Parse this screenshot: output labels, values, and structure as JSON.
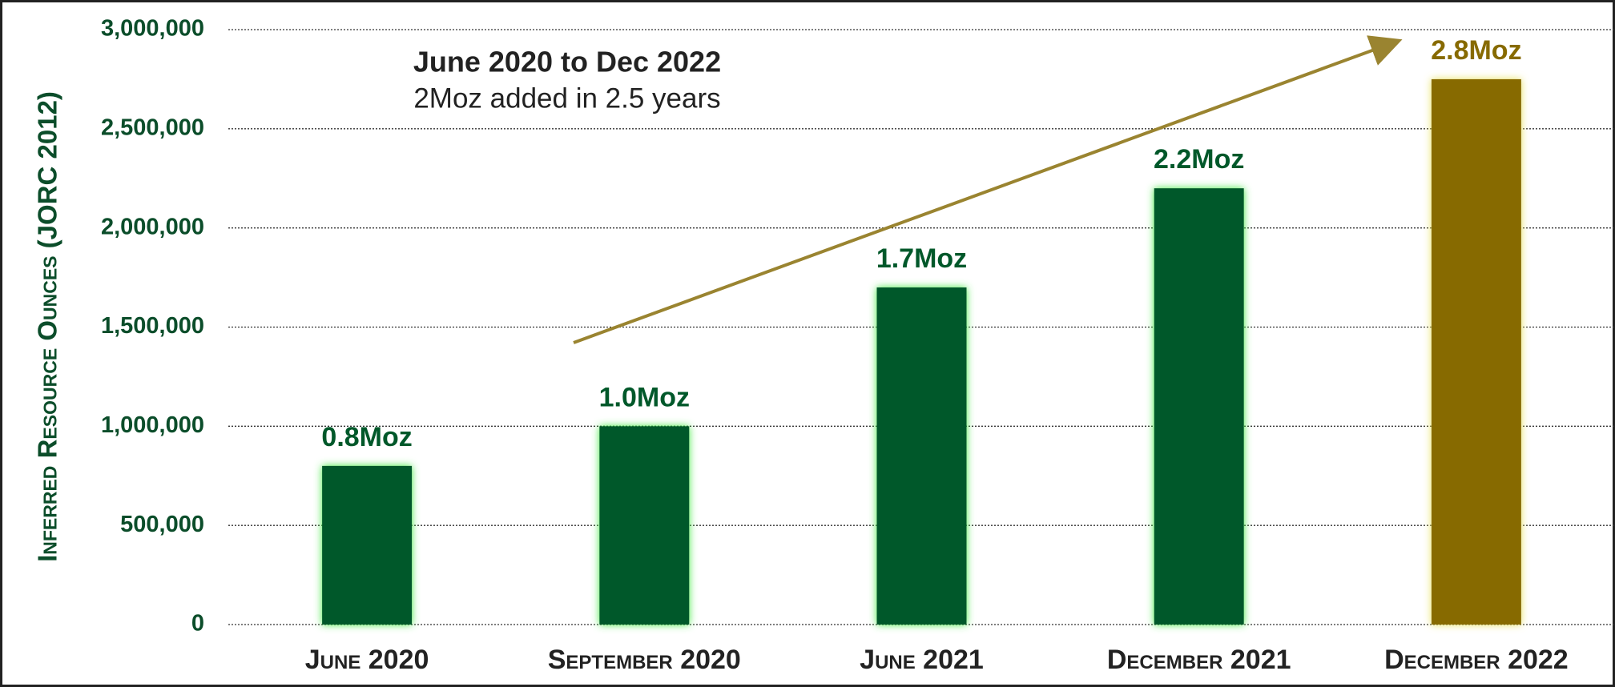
{
  "chart_data": {
    "type": "bar",
    "annotation_title": "June 2020 to Dec 2022",
    "annotation_subtitle": "2Moz added in 2.5 years",
    "y_label": "Inferred Resource Ounces (JORC 2012)",
    "categories": [
      "June 2020",
      "September 2020",
      "June 2021",
      "December 2021",
      "December 2022"
    ],
    "values": [
      800000,
      1000000,
      1700000,
      2200000,
      2750000
    ],
    "value_labels": [
      "0.8Moz",
      "1.0Moz",
      "1.7Moz",
      "2.2Moz",
      "2.8Moz"
    ],
    "colors": [
      "#00582a",
      "#00582a",
      "#00582a",
      "#00582a",
      "#876a00"
    ],
    "ylim": [
      0,
      3000000
    ],
    "yticks": [
      0,
      {
        "value": 500000,
        "label": "500,000"
      },
      {
        "value": 1000000,
        "label": "1,000,000"
      },
      {
        "value": 1500000,
        "label": "1,500,000"
      },
      {
        "value": 2000000,
        "label": "2,000,000"
      },
      {
        "value": 2500000,
        "label": "2,500,000"
      },
      {
        "value": 3000000,
        "label": "3,000,000"
      }
    ],
    "grid": true
  }
}
